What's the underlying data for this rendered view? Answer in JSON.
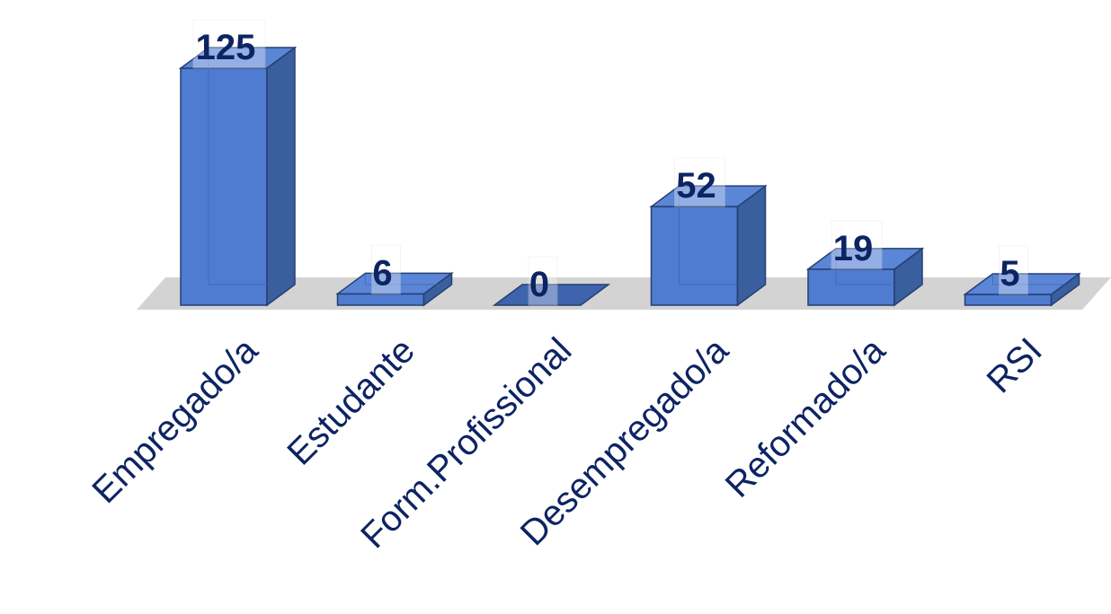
{
  "chart_data": {
    "type": "bar",
    "categories": [
      "Empregado/a",
      "Estudante",
      "Form.Profissional",
      "Desempregado/a",
      "Reformado/a",
      "RSI"
    ],
    "values": [
      125,
      6,
      0,
      52,
      19,
      5
    ],
    "title": "",
    "xlabel": "",
    "ylabel": "",
    "ylim": [
      0,
      125
    ],
    "grid": false,
    "legend": "none",
    "data_labels": true,
    "style": "3d-column",
    "colors": {
      "bar_front": "#4f7cd1",
      "bar_side": "#3a5f9e",
      "bar_top": "#5b85d6",
      "bar_edge": "#253f73",
      "floor": "#d3d3d3",
      "label_text": "#0d2463",
      "label_box": "#ffffff"
    }
  }
}
